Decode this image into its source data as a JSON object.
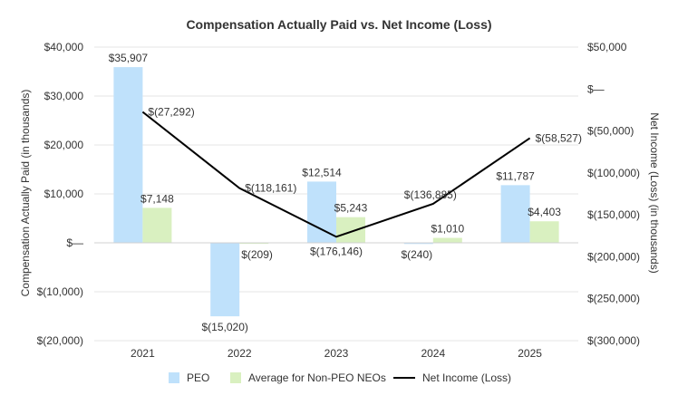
{
  "chart_data": {
    "type": "bar",
    "title": "Compensation Actually Paid vs. Net Income (Loss)",
    "categories": [
      "2021",
      "2022",
      "2023",
      "2024",
      "2025"
    ],
    "series": [
      {
        "name": "PEO",
        "kind": "bar",
        "axis": "left",
        "color": "#bfe1fb",
        "values": [
          35907,
          -15020,
          12514,
          -240,
          11787
        ],
        "labels": [
          "$35,907",
          "$(15,020)",
          "$12,514",
          "$(240)",
          "$11,787"
        ]
      },
      {
        "name": "Average for Non-PEO NEOs",
        "kind": "bar",
        "axis": "left",
        "color": "#d9f0c0",
        "values": [
          7148,
          -209,
          5243,
          1010,
          4403
        ],
        "labels": [
          "$7,148",
          "$(209)",
          "$5,243",
          "$1,010",
          "$4,403"
        ]
      },
      {
        "name": "Net Income (Loss)",
        "kind": "line",
        "axis": "right",
        "color": "#000000",
        "values": [
          -27292,
          -118161,
          -176146,
          -136885,
          -58527
        ],
        "labels": [
          "$(27,292)",
          "$(118,161)",
          "$(176,146)",
          "$(136,885)",
          "$(58,527)"
        ]
      }
    ],
    "y_left": {
      "label": "Compensation Actually Paid (in thousands)",
      "ylim": [
        -20000,
        40000
      ],
      "ticks": [
        40000,
        30000,
        20000,
        10000,
        0,
        -10000,
        -20000
      ],
      "tick_labels": [
        "$40,000",
        "$30,000",
        "$20,000",
        "$10,000",
        "$—",
        "$(10,000)",
        "$(20,000)"
      ]
    },
    "y_right": {
      "label": "Net Income (Loss) (in thousands)",
      "ylim": [
        -300000,
        50000
      ],
      "ticks": [
        50000,
        0,
        -50000,
        -100000,
        -150000,
        -200000,
        -250000,
        -300000
      ],
      "tick_labels": [
        "$50,000",
        "$—",
        "$(50,000)",
        "$(100,000)",
        "$(150,000)",
        "$(200,000)",
        "$(250,000)",
        "$(300,000)"
      ]
    },
    "legend_position": "bottom",
    "grid": true
  }
}
